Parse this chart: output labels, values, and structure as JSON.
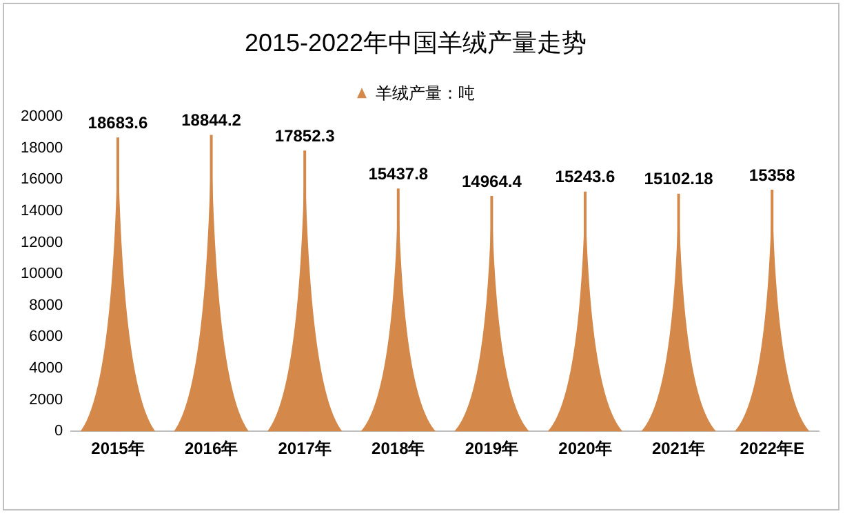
{
  "chart_data": {
    "type": "bar",
    "title": "2015-2022年中国羊绒产量走势",
    "categories": [
      "2015年",
      "2016年",
      "2017年",
      "2018年",
      "2019年",
      "2020年",
      "2021年",
      "2022年E"
    ],
    "series": [
      {
        "name": "羊绒产量：吨",
        "color": "#d4894a",
        "values": [
          18683.6,
          18844.2,
          17852.3,
          15437.8,
          14964.4,
          15243.6,
          15102.18,
          15358
        ]
      }
    ],
    "ylim": [
      0,
      20000
    ],
    "yticks": [
      0,
      2000,
      4000,
      6000,
      8000,
      10000,
      12000,
      14000,
      16000,
      18000,
      20000
    ],
    "grid": false,
    "legend": "top",
    "data_labels": true
  }
}
